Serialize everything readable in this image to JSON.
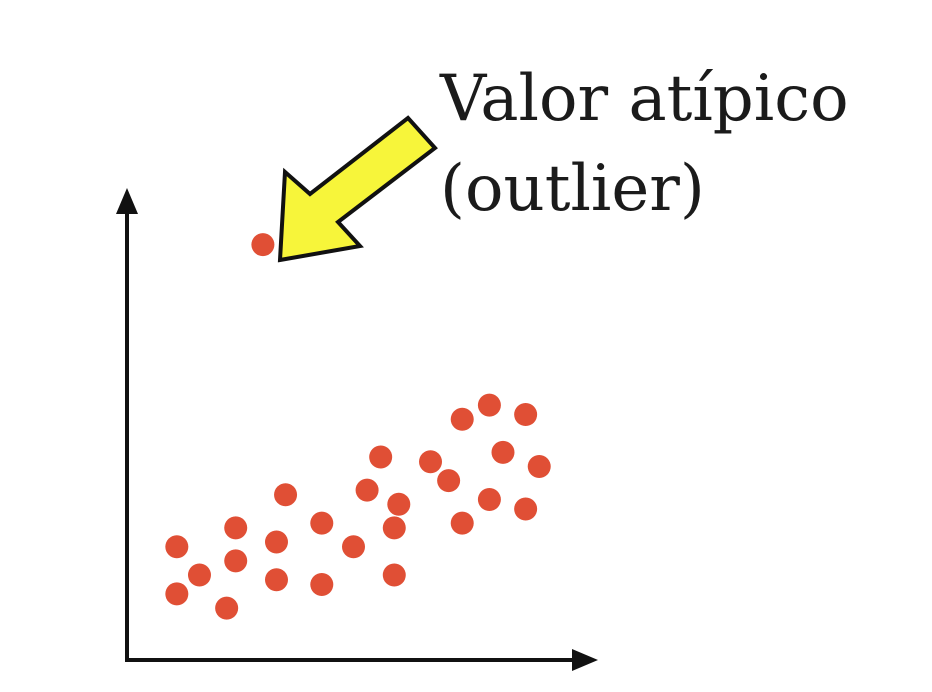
{
  "chart_data": {
    "type": "scatter",
    "title": "",
    "xlabel": "",
    "ylabel": "",
    "grid": false,
    "legend": "none",
    "xlim": [
      0,
      10
    ],
    "ylim": [
      0,
      10
    ],
    "point_color": "#e04f35",
    "points": [
      {
        "x": 1.1,
        "y": 1.4
      },
      {
        "x": 1.1,
        "y": 2.4
      },
      {
        "x": 1.6,
        "y": 1.8
      },
      {
        "x": 2.2,
        "y": 1.1
      },
      {
        "x": 2.4,
        "y": 2.1
      },
      {
        "x": 2.4,
        "y": 2.8
      },
      {
        "x": 3.3,
        "y": 1.7
      },
      {
        "x": 3.3,
        "y": 2.5
      },
      {
        "x": 3.5,
        "y": 3.5
      },
      {
        "x": 4.3,
        "y": 1.6
      },
      {
        "x": 4.3,
        "y": 2.9
      },
      {
        "x": 5.0,
        "y": 2.4
      },
      {
        "x": 5.3,
        "y": 3.6
      },
      {
        "x": 5.6,
        "y": 4.3
      },
      {
        "x": 5.9,
        "y": 1.8
      },
      {
        "x": 5.9,
        "y": 2.8
      },
      {
        "x": 6.0,
        "y": 3.3
      },
      {
        "x": 6.7,
        "y": 4.2
      },
      {
        "x": 7.1,
        "y": 3.8
      },
      {
        "x": 7.4,
        "y": 2.9
      },
      {
        "x": 7.4,
        "y": 5.1
      },
      {
        "x": 8.0,
        "y": 3.4
      },
      {
        "x": 8.0,
        "y": 5.4
      },
      {
        "x": 8.3,
        "y": 4.4
      },
      {
        "x": 8.8,
        "y": 3.2
      },
      {
        "x": 8.8,
        "y": 5.2
      },
      {
        "x": 9.1,
        "y": 4.1
      }
    ],
    "outlier": {
      "x": 3.0,
      "y": 8.8
    },
    "annotation": {
      "line1": "Valor atípico",
      "line2": "(outlier)",
      "arrow_color": "#f7f53a",
      "arrow_outline": "#111111"
    }
  }
}
